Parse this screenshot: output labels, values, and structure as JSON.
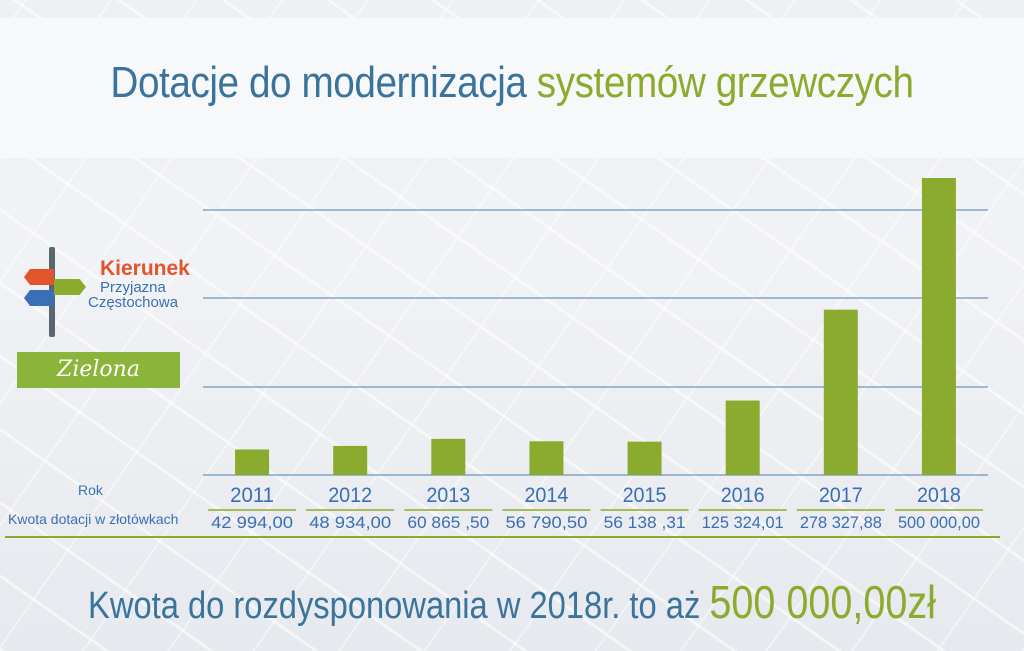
{
  "title": {
    "part1": "Dotacje do modernizacja",
    "part2": "systemów grzewczych"
  },
  "logo": {
    "line1": "Kierunek",
    "line2": "Przyjazna",
    "line3": "Częstochowa",
    "badge": "Zielona"
  },
  "row_labels": {
    "year": "Rok",
    "amount": "Kwota dotacji w złotówkach"
  },
  "footer": {
    "text": "Kwota do rozdysponowania w 2018r. to aż",
    "amount": "500 000,00zł"
  },
  "colors": {
    "bar": "#8bab2e",
    "grid": "#4a7fb2",
    "blue_text": "#3a739b",
    "green_text": "#8bab2e",
    "separator": "#8bab2e"
  },
  "chart_data": {
    "type": "bar",
    "categories": [
      "2011",
      "2012",
      "2013",
      "2014",
      "2015",
      "2016",
      "2017",
      "2018"
    ],
    "values": [
      42994.0,
      48934.0,
      60865.5,
      56790.5,
      56138.31,
      125324.01,
      278327.88,
      500000.0
    ],
    "value_labels": [
      "42 994,00",
      "48 934,00",
      "60 865 ,50",
      "56 790,50",
      "56 138 ,31",
      "125 324,01",
      "278 327,88",
      "500 000,00"
    ],
    "grid": true,
    "ylim": [
      0,
      500000
    ]
  }
}
